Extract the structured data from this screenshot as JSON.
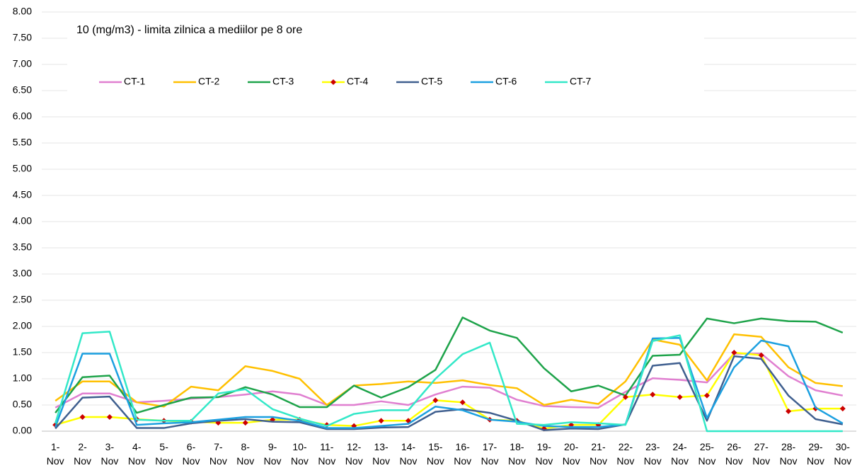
{
  "chart_data": {
    "type": "line",
    "title": "10 (mg/m3) - limita zilnica a mediilor pe 8 ore",
    "categories": [
      "1-Nov",
      "2-Nov",
      "3-Nov",
      "4-Nov",
      "5-Nov",
      "6-Nov",
      "7-Nov",
      "8-Nov",
      "9-Nov",
      "10-Nov",
      "11-Nov",
      "12-Nov",
      "13-Nov",
      "14-Nov",
      "15-Nov",
      "16-Nov",
      "17-Nov",
      "18-Nov",
      "19-Nov",
      "20-Nov",
      "21-Nov",
      "22-Nov",
      "23-Nov",
      "24-Nov",
      "25-Nov",
      "26-Nov",
      "27-Nov",
      "28-Nov",
      "29-Nov",
      "30-Nov"
    ],
    "ylim": [
      0,
      8
    ],
    "yticks": [
      {
        "value": 0,
        "label": "0.00"
      },
      {
        "value": 0.5,
        "label": "0.50"
      },
      {
        "value": 1,
        "label": "1.00"
      },
      {
        "value": 1.5,
        "label": "1.50"
      },
      {
        "value": 2,
        "label": "2.00"
      },
      {
        "value": 2.5,
        "label": "2.50"
      },
      {
        "value": 3,
        "label": "3.00"
      },
      {
        "value": 3.5,
        "label": "3.50"
      },
      {
        "value": 4,
        "label": "4.00"
      },
      {
        "value": 4.5,
        "label": "4.50"
      },
      {
        "value": 5,
        "label": "5.00"
      },
      {
        "value": 5.5,
        "label": "5.50"
      },
      {
        "value": 6,
        "label": "6.00"
      },
      {
        "value": 6.5,
        "label": "6.50"
      },
      {
        "value": 7,
        "label": "7.00"
      },
      {
        "value": 7.5,
        "label": "7.50"
      },
      {
        "value": 8,
        "label": "8.00"
      }
    ],
    "grid": true,
    "legend": "top-left",
    "series": [
      {
        "name": "CT-1",
        "color": "#e07fd0",
        "values": [
          0.45,
          0.72,
          0.72,
          0.55,
          0.58,
          0.62,
          0.65,
          0.7,
          0.76,
          0.7,
          0.5,
          0.5,
          0.57,
          0.5,
          0.7,
          0.85,
          0.83,
          0.6,
          0.48,
          0.46,
          0.45,
          0.75,
          1.01,
          0.98,
          0.93,
          1.48,
          1.48,
          1.05,
          0.78,
          0.68
        ]
      },
      {
        "name": "CT-2",
        "color": "#ffc000",
        "values": [
          0.58,
          0.95,
          0.95,
          0.55,
          0.47,
          0.85,
          0.78,
          1.24,
          1.15,
          1.0,
          0.5,
          0.87,
          0.9,
          0.95,
          0.92,
          0.97,
          0.88,
          0.82,
          0.5,
          0.6,
          0.52,
          0.95,
          1.75,
          1.65,
          0.97,
          1.85,
          1.8,
          1.22,
          0.92,
          0.86
        ]
      },
      {
        "name": "CT-3",
        "color": "#1ea34a",
        "values": [
          0.35,
          1.03,
          1.06,
          0.35,
          0.5,
          0.64,
          0.65,
          0.84,
          0.7,
          0.46,
          0.46,
          0.87,
          0.64,
          0.84,
          1.17,
          2.17,
          1.92,
          1.78,
          1.2,
          0.76,
          0.87,
          0.68,
          1.44,
          1.46,
          2.15,
          2.06,
          2.15,
          2.1,
          2.09,
          1.88
        ]
      },
      {
        "name": "CT-4",
        "color": "#ffff00",
        "marker_color": "#cc0000",
        "values": [
          0.12,
          0.27,
          0.27,
          0.23,
          0.2,
          0.18,
          0.16,
          0.16,
          0.22,
          0.22,
          0.12,
          0.1,
          0.2,
          0.2,
          0.59,
          0.55,
          0.22,
          0.2,
          0.05,
          0.12,
          0.12,
          0.65,
          0.7,
          0.65,
          0.68,
          1.5,
          1.45,
          0.38,
          0.43,
          0.43
        ]
      },
      {
        "name": "CT-5",
        "color": "#3f5f8f",
        "values": [
          0.05,
          0.64,
          0.66,
          0.06,
          0.06,
          0.15,
          0.2,
          0.23,
          0.18,
          0.17,
          0.04,
          0.04,
          0.07,
          0.08,
          0.37,
          0.42,
          0.35,
          0.2,
          0.02,
          0.05,
          0.04,
          0.13,
          1.25,
          1.3,
          0.2,
          1.43,
          1.38,
          0.68,
          0.23,
          0.13
        ]
      },
      {
        "name": "CT-6",
        "color": "#1ca0e0",
        "values": [
          0.08,
          1.48,
          1.48,
          0.12,
          0.15,
          0.17,
          0.22,
          0.27,
          0.27,
          0.2,
          0.06,
          0.06,
          0.1,
          0.14,
          0.47,
          0.4,
          0.22,
          0.18,
          0.1,
          0.08,
          0.08,
          0.13,
          1.77,
          1.78,
          0.25,
          1.22,
          1.73,
          1.62,
          0.45,
          0.15
        ]
      },
      {
        "name": "CT-7",
        "color": "#33e8c8",
        "values": [
          0.15,
          1.87,
          1.9,
          0.22,
          0.2,
          0.2,
          0.72,
          0.8,
          0.42,
          0.24,
          0.1,
          0.33,
          0.4,
          0.4,
          1.0,
          1.47,
          1.69,
          0.14,
          0.12,
          0.17,
          0.15,
          0.12,
          1.72,
          1.83,
          0,
          0,
          0,
          0,
          0,
          0
        ]
      }
    ]
  }
}
